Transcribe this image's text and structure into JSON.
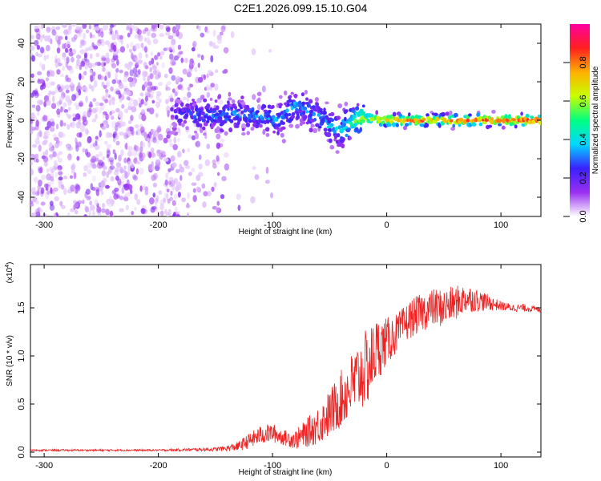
{
  "title": "C2E1.2026.099.15.10.G04",
  "chart_data": [
    {
      "type": "heatmap",
      "xlabel": "Height of straight line (km)",
      "ylabel": "Frequency (Hz)",
      "xlim": [
        -312,
        135
      ],
      "ylim": [
        -50,
        50
      ],
      "x_ticks": [
        -300,
        -200,
        -100,
        0,
        100
      ],
      "x_tick_labels": [
        "-300",
        "-200",
        "-100",
        "0",
        "100"
      ],
      "y_ticks": [
        -40,
        -20,
        0,
        20,
        40
      ],
      "y_tick_labels": [
        "-40",
        "-20",
        "0",
        "20",
        "40"
      ],
      "colorbar": {
        "label": "Normalized spectral amplitude",
        "range": [
          0,
          1
        ],
        "ticks": [
          0.0,
          0.2,
          0.4,
          0.6,
          0.8
        ],
        "tick_labels": [
          "0.0",
          "0.2",
          "0.4",
          "0.6",
          "0.8"
        ],
        "colors": [
          "#ffffff",
          "#9a30f0",
          "#3a20ff",
          "#00d8ff",
          "#00ff80",
          "#c8ff00",
          "#ffb000",
          "#ff2020",
          "#ff00a0"
        ]
      },
      "ridge": {
        "x": [
          -185,
          -170,
          -150,
          -130,
          -110,
          -95,
          -80,
          -70,
          -60,
          -50,
          -40,
          -30,
          -20,
          0,
          50,
          100,
          135
        ],
        "y": [
          5,
          3,
          2,
          3,
          2,
          0,
          8,
          5,
          2,
          -3,
          -5,
          -1,
          1,
          0,
          0,
          0,
          0
        ],
        "amplitude": [
          0.2,
          0.25,
          0.3,
          0.3,
          0.3,
          0.35,
          0.3,
          0.3,
          0.3,
          0.35,
          0.4,
          0.5,
          0.6,
          0.8,
          0.8,
          0.85,
          0.85
        ],
        "noise_floor_x_end": -140
      }
    },
    {
      "type": "line",
      "xlabel": "Height of straight line (km)",
      "ylabel": "SNR (10 * v/v)",
      "y_scale_label": "(x10",
      "y_scale_exponent": "4",
      "y_scale_suffix": ")",
      "xlim": [
        -312,
        135
      ],
      "ylim": [
        -0.05,
        1.95
      ],
      "x_ticks": [
        -300,
        -200,
        -100,
        0,
        100
      ],
      "x_tick_labels": [
        "-300",
        "-200",
        "-100",
        "0",
        "100"
      ],
      "y_ticks": [
        0.0,
        0.5,
        1.0,
        1.5
      ],
      "y_tick_labels": [
        "0.0",
        "0.5",
        "1.0",
        "1.5"
      ],
      "color": "#ee2222",
      "x": [
        -312,
        -250,
        -200,
        -150,
        -140,
        -130,
        -120,
        -110,
        -100,
        -90,
        -80,
        -70,
        -60,
        -50,
        -40,
        -30,
        -20,
        -15,
        -10,
        0,
        10,
        20,
        30,
        40,
        50,
        60,
        70,
        80,
        90,
        100,
        110,
        120,
        135
      ],
      "y": [
        0.02,
        0.02,
        0.02,
        0.03,
        0.04,
        0.06,
        0.12,
        0.18,
        0.2,
        0.15,
        0.13,
        0.2,
        0.28,
        0.4,
        0.55,
        0.7,
        0.85,
        0.9,
        1.05,
        1.15,
        1.25,
        1.38,
        1.45,
        1.5,
        1.5,
        1.55,
        1.6,
        1.58,
        1.55,
        1.52,
        1.5,
        1.5,
        1.48
      ],
      "spread": [
        0.01,
        0.01,
        0.01,
        0.02,
        0.03,
        0.05,
        0.08,
        0.1,
        0.1,
        0.08,
        0.1,
        0.15,
        0.2,
        0.25,
        0.3,
        0.35,
        0.4,
        0.4,
        0.35,
        0.25,
        0.2,
        0.2,
        0.2,
        0.2,
        0.2,
        0.18,
        0.15,
        0.12,
        0.08,
        0.05,
        0.04,
        0.04,
        0.03
      ]
    }
  ]
}
